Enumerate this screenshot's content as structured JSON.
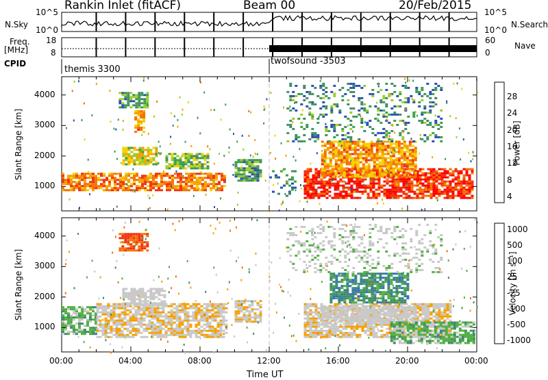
{
  "header": {
    "station": "Rankin Inlet (fitACF)",
    "beam": "Beam 00",
    "date": "20/Feb/2015"
  },
  "panels": {
    "nsky_label": "N.Sky",
    "nsearch_label": "N.Search",
    "freq_label": "Freq.",
    "freq_unit": "[MHz]",
    "nave_label": "Nave",
    "cpid_label": "CPID",
    "nsky_ticks": [
      "10^5",
      "10^0"
    ],
    "nsearch_ticks": [
      "10^5",
      "10^0"
    ],
    "freq_ticks": [
      "18",
      "8"
    ],
    "nave_ticks": [
      "60",
      "0"
    ],
    "cpid_segments": [
      {
        "name": "themis 3300",
        "start_hour": 0
      },
      {
        "name": "twofsound -3503",
        "start_hour": 12
      }
    ]
  },
  "colors": {
    "power_scale": [
      "#0000ff",
      "#2a4fb0",
      "#3f8a6a",
      "#3aa04a",
      "#9ccc2a",
      "#f5d200",
      "#f5a000",
      "#f57000",
      "#f03010",
      "#ff0000"
    ],
    "velocity_scale": [
      "#1030c0",
      "#3070c0",
      "#3f8a6a",
      "#50b040",
      "#c8c8c8",
      "#c8c8c8",
      "#f5a000",
      "#f57000",
      "#f03010",
      "#ff0000"
    ]
  },
  "chart_data": [
    {
      "type": "heatmap",
      "title": "Power",
      "ylabel": "Slant Range [km]",
      "xlabel": "Time UT",
      "xlim": [
        0,
        24
      ],
      "ylim": [
        200,
        4600
      ],
      "yticks": [
        "1000",
        "2000",
        "3000",
        "4000"
      ],
      "xticks": [
        "00:00",
        "04:00",
        "08:00",
        "12:00",
        "16:00",
        "20:00",
        "00:00"
      ],
      "colorbar": {
        "label": "Power [dB]",
        "ticks": [
          "28",
          "24",
          "20",
          "16",
          "12",
          "8",
          "4"
        ],
        "range": [
          0,
          30
        ]
      },
      "regions": [
        {
          "t": [
            0.0,
            9.5
          ],
          "r": [
            850,
            1450
          ],
          "v": 22
        },
        {
          "t": [
            3.5,
            5.5
          ],
          "r": [
            1700,
            2300
          ],
          "v": 16
        },
        {
          "t": [
            4.2,
            4.8
          ],
          "r": [
            2800,
            3500
          ],
          "v": 20
        },
        {
          "t": [
            3.3,
            5.0
          ],
          "r": [
            3600,
            4100
          ],
          "v": 10
        },
        {
          "t": [
            6.0,
            8.5
          ],
          "r": [
            1600,
            2100
          ],
          "v": 12
        },
        {
          "t": [
            10.0,
            11.5
          ],
          "r": [
            1200,
            1900
          ],
          "v": 10
        },
        {
          "t": [
            12.0,
            13.5
          ],
          "r": [
            700,
            1600
          ],
          "v": 8
        },
        {
          "t": [
            14.0,
            23.8
          ],
          "r": [
            600,
            1600
          ],
          "v": 26
        },
        {
          "t": [
            15.0,
            20.5
          ],
          "r": [
            1300,
            2500
          ],
          "v": 20
        },
        {
          "t": [
            13.0,
            22.0
          ],
          "r": [
            2500,
            4400
          ],
          "v": 8
        }
      ]
    },
    {
      "type": "heatmap",
      "title": "Velocity",
      "ylabel": "Slant Range [km]",
      "xlabel": "Time UT",
      "xlim": [
        0,
        24
      ],
      "ylim": [
        200,
        4600
      ],
      "yticks": [
        "1000",
        "2000",
        "3000",
        "4000"
      ],
      "xticks": [
        "00:00",
        "04:00",
        "08:00",
        "12:00",
        "16:00",
        "20:00",
        "00:00"
      ],
      "colorbar": {
        "label": "Velocity [m s⁻¹]",
        "ticks": [
          "1000",
          "500",
          "100",
          "25",
          "-25",
          "-100",
          "-500",
          "-1000"
        ],
        "range": [
          -1000,
          1000
        ]
      },
      "regions": [
        {
          "t": [
            0.0,
            2.0
          ],
          "r": [
            800,
            1700
          ],
          "v": -300
        },
        {
          "t": [
            2.0,
            9.5
          ],
          "r": [
            700,
            1800
          ],
          "v": 150
        },
        {
          "t": [
            3.5,
            6.0
          ],
          "r": [
            1700,
            2300
          ],
          "v": 0
        },
        {
          "t": [
            3.3,
            5.0
          ],
          "r": [
            3500,
            4100
          ],
          "v": 600
        },
        {
          "t": [
            10.0,
            11.5
          ],
          "r": [
            1200,
            1900
          ],
          "v": 150
        },
        {
          "t": [
            14.0,
            22.5
          ],
          "r": [
            700,
            1800
          ],
          "v": 150
        },
        {
          "t": [
            15.0,
            20.5
          ],
          "r": [
            1100,
            1700
          ],
          "v": 0
        },
        {
          "t": [
            15.5,
            20.0
          ],
          "r": [
            1800,
            2800
          ],
          "v": -500
        },
        {
          "t": [
            19.0,
            23.8
          ],
          "r": [
            500,
            1200
          ],
          "v": -300
        },
        {
          "t": [
            13.0,
            22.0
          ],
          "r": [
            2800,
            4400
          ],
          "v": -100
        }
      ]
    }
  ]
}
